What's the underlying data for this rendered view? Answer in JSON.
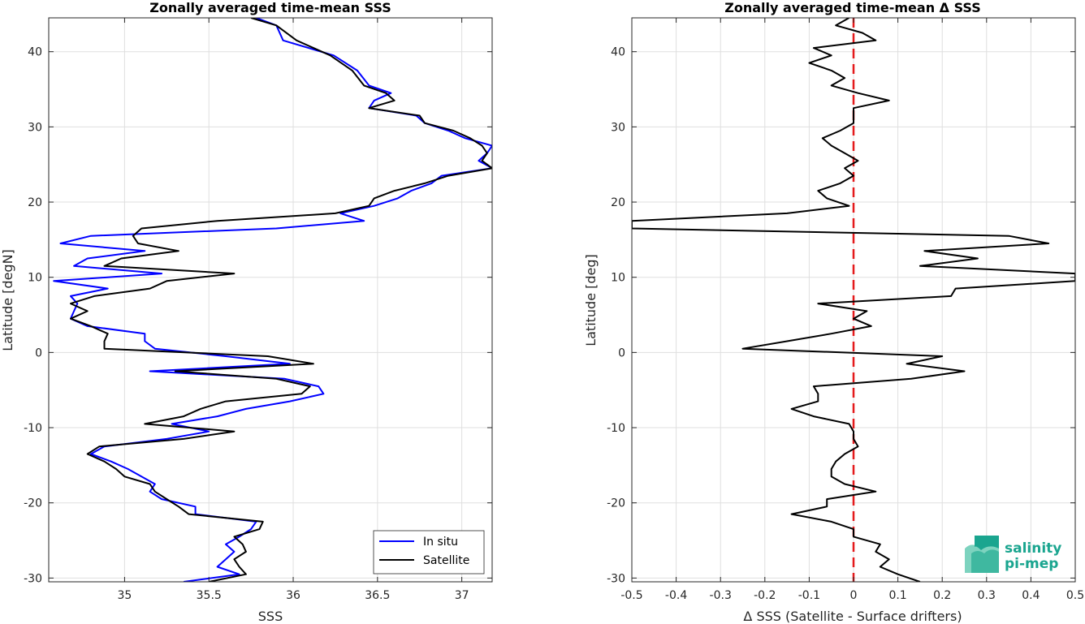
{
  "chart_data": [
    {
      "type": "line",
      "title": "Zonally averaged time-mean SSS",
      "xlabel": "SSS",
      "ylabel": "Latitude [degN]",
      "xlim": [
        34.55,
        37.18
      ],
      "ylim": [
        -30.5,
        44.5
      ],
      "xticks": [
        35,
        35.5,
        36,
        36.5,
        37
      ],
      "xtick_labels": [
        "35",
        "35.5",
        "36",
        "36.5",
        "37"
      ],
      "yticks": [
        -30,
        -20,
        -10,
        0,
        10,
        20,
        30,
        40
      ],
      "ytick_labels": [
        "-30",
        "-20",
        "-10",
        "0",
        "10",
        "20",
        "30",
        "40"
      ],
      "grid": true,
      "legend": {
        "placement": "bottom-right",
        "entries": [
          "In situ",
          "Satellite"
        ]
      },
      "series": [
        {
          "name": "In situ",
          "color": "#0000ff",
          "lat": [
            44.5,
            43.5,
            41.5,
            39.5,
            37.5,
            35.5,
            34.5,
            33.5,
            32.5,
            31.5,
            30.5,
            29.5,
            28.5,
            27.5,
            26.5,
            25.5,
            24.5,
            23.5,
            22.5,
            21.5,
            20.5,
            19.5,
            18.5,
            17.5,
            16.5,
            15.5,
            14.5,
            13.5,
            12.5,
            11.5,
            10.5,
            9.5,
            8.5,
            7.5,
            6.5,
            5.5,
            4.5,
            3.5,
            2.5,
            1.5,
            0.5,
            -0.5,
            -1.5,
            -2.5,
            -3.5,
            -4.5,
            -5.5,
            -6.5,
            -7.5,
            -8.5,
            -9.5,
            -10.5,
            -11.5,
            -12.5,
            -13.5,
            -14.5,
            -15.5,
            -16.5,
            -17.5,
            -18.5,
            -19.5,
            -20.5,
            -21.5,
            -22.5,
            -23.5,
            -24.5,
            -25.5,
            -26.5,
            -27.5,
            -28.5,
            -29.5,
            -30.5
          ],
          "values": [
            35.78,
            35.9,
            35.94,
            36.24,
            36.38,
            36.45,
            36.58,
            36.48,
            36.45,
            36.73,
            36.78,
            36.92,
            37.02,
            37.18,
            37.15,
            37.1,
            37.18,
            36.88,
            36.82,
            36.7,
            36.62,
            36.48,
            36.28,
            36.42,
            35.9,
            34.8,
            34.62,
            35.12,
            34.78,
            34.7,
            35.22,
            34.58,
            34.9,
            34.68,
            34.72,
            34.7,
            34.68,
            34.78,
            35.12,
            35.12,
            35.18,
            35.6,
            35.98,
            35.15,
            35.95,
            36.15,
            36.18,
            35.98,
            35.72,
            35.55,
            35.28,
            35.5,
            35.25,
            34.88,
            34.8,
            34.92,
            35.02,
            35.1,
            35.18,
            35.15,
            35.22,
            35.42,
            35.42,
            35.78,
            35.75,
            35.68,
            35.6,
            35.65,
            35.6,
            35.55,
            35.68,
            35.35
          ]
        },
        {
          "name": "Satellite",
          "color": "#000000",
          "lat": [
            44.5,
            43.5,
            41.5,
            39.5,
            37.5,
            35.5,
            34.5,
            33.5,
            32.5,
            31.5,
            30.5,
            29.5,
            28.5,
            27.5,
            26.5,
            25.5,
            24.5,
            23.5,
            22.5,
            21.5,
            20.5,
            19.5,
            18.5,
            17.5,
            16.5,
            15.5,
            14.5,
            13.5,
            12.5,
            11.5,
            10.5,
            9.5,
            8.5,
            7.5,
            6.5,
            5.5,
            4.5,
            3.5,
            2.5,
            1.5,
            0.5,
            -0.5,
            -1.5,
            -2.5,
            -3.5,
            -4.5,
            -5.5,
            -6.5,
            -7.5,
            -8.5,
            -9.5,
            -10.5,
            -11.5,
            -12.5,
            -13.5,
            -14.5,
            -15.5,
            -16.5,
            -17.5,
            -18.5,
            -19.5,
            -20.5,
            -21.5,
            -22.5,
            -23.5,
            -24.5,
            -25.5,
            -26.5,
            -27.5,
            -28.5,
            -29.5,
            -30.5
          ],
          "values": [
            35.75,
            35.9,
            36.02,
            36.22,
            36.35,
            36.42,
            36.55,
            36.6,
            36.45,
            36.75,
            36.78,
            36.95,
            37.05,
            37.12,
            37.15,
            37.12,
            37.18,
            36.92,
            36.78,
            36.6,
            36.48,
            36.45,
            36.25,
            35.55,
            35.1,
            35.05,
            35.08,
            35.32,
            34.98,
            34.88,
            35.65,
            35.25,
            35.15,
            34.82,
            34.68,
            34.78,
            34.68,
            34.8,
            34.9,
            34.88,
            34.88,
            35.85,
            36.12,
            35.3,
            35.9,
            36.1,
            36.05,
            35.6,
            35.45,
            35.35,
            35.12,
            35.65,
            35.35,
            34.85,
            34.78,
            34.88,
            34.95,
            35.0,
            35.15,
            35.18,
            35.25,
            35.32,
            35.38,
            35.82,
            35.8,
            35.65,
            35.7,
            35.72,
            35.65,
            35.68,
            35.72,
            35.5
          ]
        }
      ]
    },
    {
      "type": "line",
      "title": "Zonally averaged time-mean Δ SSS",
      "xlabel": "Δ SSS (Satellite - Surface drifters)",
      "ylabel": "Latitude [deg]",
      "xlim": [
        -0.5,
        0.5
      ],
      "ylim": [
        -30.5,
        44.5
      ],
      "xticks": [
        -0.5,
        -0.4,
        -0.3,
        -0.2,
        -0.1,
        0,
        0.1,
        0.2,
        0.3,
        0.4,
        0.5
      ],
      "xtick_labels": [
        "-0.5",
        "-0.4",
        "-0.3",
        "-0.2",
        "-0.1",
        "0",
        "0.1",
        "0.2",
        "0.3",
        "0.4",
        "0.5"
      ],
      "yticks": [
        -30,
        -20,
        -10,
        0,
        10,
        20,
        30,
        40
      ],
      "ytick_labels": [
        "-30",
        "-20",
        "-10",
        "0",
        "10",
        "20",
        "30",
        "40"
      ],
      "grid": true,
      "reference_line": {
        "x": 0,
        "color": "#e41a1c",
        "style": "dashed"
      },
      "series": [
        {
          "color": "#000000",
          "lat": [
            44.5,
            43.5,
            42.5,
            41.5,
            40.5,
            39.5,
            38.5,
            37.5,
            36.5,
            35.5,
            34.5,
            33.5,
            32.5,
            31.5,
            30.5,
            29.5,
            28.5,
            27.5,
            26.5,
            25.5,
            24.5,
            23.5,
            22.5,
            21.5,
            20.5,
            19.5,
            18.5,
            17.5,
            16.5,
            15.5,
            14.5,
            13.5,
            12.5,
            11.5,
            10.5,
            9.5,
            8.5,
            7.5,
            6.5,
            5.5,
            4.5,
            3.5,
            2.5,
            1.5,
            0.5,
            -0.5,
            -1.5,
            -2.5,
            -3.5,
            -4.5,
            -5.5,
            -6.5,
            -7.5,
            -8.5,
            -9.5,
            -10.5,
            -11.5,
            -12.5,
            -13.5,
            -14.5,
            -15.5,
            -16.5,
            -17.5,
            -18.5,
            -19.5,
            -20.5,
            -21.5,
            -22.5,
            -23.5,
            -24.5,
            -25.5,
            -26.5,
            -27.5,
            -28.5,
            -29.5,
            -30.5
          ],
          "values": [
            -0.01,
            -0.04,
            0.02,
            0.05,
            -0.09,
            -0.05,
            -0.1,
            -0.05,
            -0.02,
            -0.05,
            0.01,
            0.08,
            0.0,
            0.0,
            0.0,
            -0.03,
            -0.07,
            -0.05,
            -0.02,
            0.01,
            -0.02,
            0.0,
            -0.03,
            -0.08,
            -0.06,
            -0.01,
            -0.15,
            -0.5,
            -0.5,
            0.35,
            0.44,
            0.16,
            0.28,
            0.15,
            0.5,
            0.5,
            0.23,
            0.22,
            -0.08,
            0.03,
            0.0,
            0.04,
            -0.05,
            -0.15,
            -0.25,
            0.2,
            0.12,
            0.25,
            0.13,
            -0.09,
            -0.08,
            -0.08,
            -0.14,
            -0.09,
            -0.01,
            0.0,
            0.0,
            0.01,
            -0.02,
            -0.04,
            -0.05,
            -0.05,
            -0.02,
            0.05,
            -0.06,
            -0.06,
            -0.14,
            -0.05,
            0.0,
            0.0,
            0.06,
            0.05,
            0.08,
            0.06,
            0.1,
            0.15
          ]
        }
      ]
    }
  ],
  "logo": {
    "line1": "salinity",
    "line2": "pi-mep",
    "color": "#1aa58f"
  }
}
